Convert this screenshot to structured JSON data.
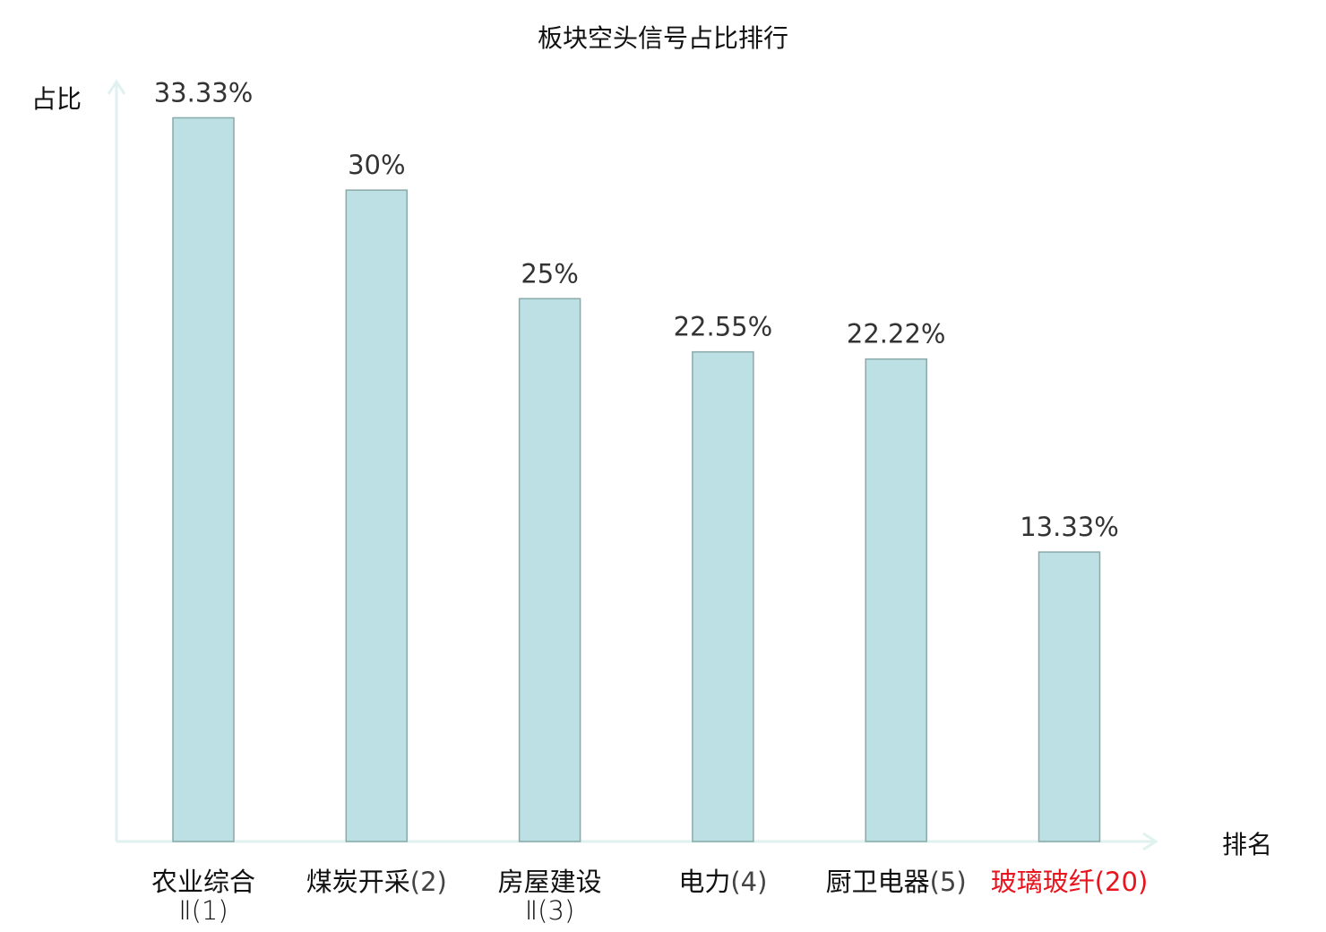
{
  "chart_data": {
    "type": "bar",
    "title": "板块空头信号占比排行",
    "xlabel": "排名",
    "ylabel": "占比",
    "categories": [
      {
        "name": "农业综合",
        "suffix": "Ⅱ(1)",
        "highlight": false
      },
      {
        "name": "煤炭开采",
        "suffix": "(2)",
        "highlight": false
      },
      {
        "name": "房屋建设",
        "suffix": "Ⅱ(3)",
        "highlight": false
      },
      {
        "name": "电力",
        "suffix": "(4)",
        "highlight": false
      },
      {
        "name": "厨卫电器",
        "suffix": "(5)",
        "highlight": false
      },
      {
        "name": "玻璃玻纤",
        "suffix": "(20)",
        "highlight": true
      }
    ],
    "values": [
      33.33,
      30,
      25,
      22.55,
      22.22,
      13.33
    ],
    "data_labels": [
      "33.33%",
      "30%",
      "25%",
      "22.55%",
      "22.22%",
      "13.33%"
    ],
    "ylim": [
      0,
      35
    ],
    "grid": false,
    "colors": {
      "bar_fill": "#bce0e3",
      "bar_stroke": "#8aa9a9",
      "axis": "#dff2ef",
      "highlight_text": "#e8141e",
      "text": "#333333"
    }
  }
}
